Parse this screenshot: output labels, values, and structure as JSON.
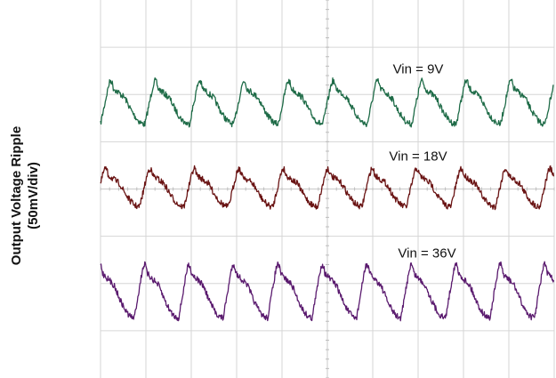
{
  "chart_data": {
    "type": "line",
    "title": "",
    "xlabel": "",
    "ylabel": "Output Voltage Ripple",
    "ylabel_units": "(50mV/div)",
    "grid": true,
    "grid_divisions": {
      "x": 10,
      "y": 8
    },
    "y_scale_per_div_mV": 50,
    "series": [
      {
        "name": "Vin = 9V",
        "color": "#1e6b47",
        "ripple_period_div": 0.98,
        "ripple_peak_to_peak_div": 0.85,
        "baseline_div": 5.8
      },
      {
        "name": "Vin = 18V",
        "color": "#6a1414",
        "ripple_period_div": 0.98,
        "ripple_peak_to_peak_div": 0.75,
        "baseline_div": 4.0
      },
      {
        "name": "Vin = 36V",
        "color": "#5a1a6e",
        "ripple_period_div": 0.98,
        "ripple_peak_to_peak_div": 1.05,
        "baseline_div": 1.8
      }
    ]
  }
}
